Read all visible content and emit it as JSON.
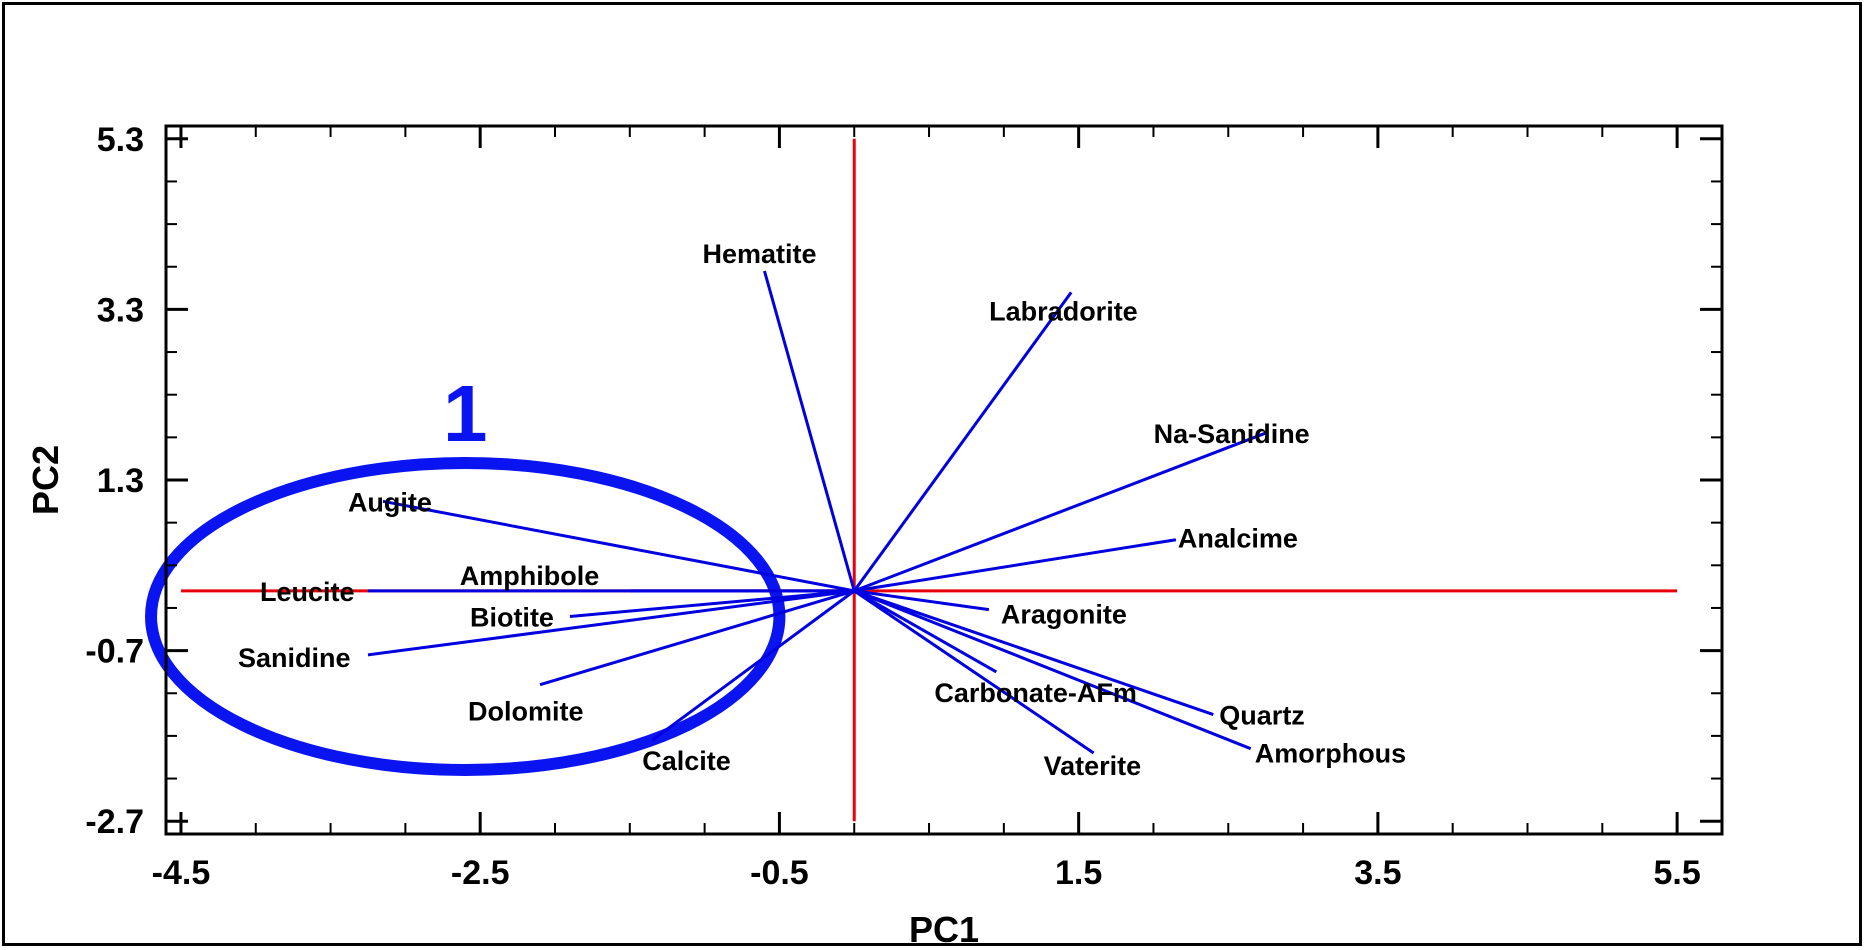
{
  "chart_data": {
    "type": "biplot",
    "xlabel": "PC1",
    "ylabel": "PC2",
    "xlim": [
      -4.6,
      5.8
    ],
    "ylim": [
      -2.85,
      5.45
    ],
    "xticks": [
      -4.5,
      -2.5,
      -0.5,
      1.5,
      3.5,
      5.5
    ],
    "xtick_labels": [
      "-4.5",
      "-2.5",
      "-0.5",
      "1.5",
      "3.5",
      "5.5"
    ],
    "yticks": [
      -2.7,
      -0.7,
      1.3,
      3.3,
      5.3
    ],
    "ytick_labels": [
      "-2.7",
      "-0.7",
      "1.3",
      "3.3",
      "5.3"
    ],
    "origin_lines": {
      "x": [
        -4.5,
        5.5
      ],
      "y": [
        -2.7,
        5.3
      ],
      "color": "#e8000b"
    },
    "vector_color": "#0000e0",
    "vectors": [
      {
        "name": "Hematite",
        "x": -0.6,
        "y": 3.75
      },
      {
        "name": "Labradorite",
        "x": 1.45,
        "y": 3.5
      },
      {
        "name": "Na-Sanidine",
        "x": 2.75,
        "y": 1.85
      },
      {
        "name": "Analcime",
        "x": 2.15,
        "y": 0.6
      },
      {
        "name": "Aragonite",
        "x": 0.9,
        "y": -0.22
      },
      {
        "name": "Carbonate-AFm",
        "x": 0.95,
        "y": -0.95
      },
      {
        "name": "Quartz",
        "x": 2.4,
        "y": -1.45
      },
      {
        "name": "Amorphous",
        "x": 2.65,
        "y": -1.85
      },
      {
        "name": "Vaterite",
        "x": 1.6,
        "y": -1.9
      },
      {
        "name": "Augite",
        "x": -3.15,
        "y": 1.05
      },
      {
        "name": "Leucite",
        "x": -3.25,
        "y": 0.0
      },
      {
        "name": "Amphibole",
        "x": -1.5,
        "y": 0.0
      },
      {
        "name": "Biotite",
        "x": -1.9,
        "y": -0.3
      },
      {
        "name": "Sanidine",
        "x": -3.25,
        "y": -0.75
      },
      {
        "name": "Dolomite",
        "x": -2.1,
        "y": -1.1
      },
      {
        "name": "Calcite",
        "x": -1.35,
        "y": -1.75
      }
    ],
    "group": {
      "label": "1",
      "color": "#0a14f0",
      "cx": -2.6,
      "cy": -0.3,
      "rx": 2.1,
      "ry": 1.8
    }
  }
}
